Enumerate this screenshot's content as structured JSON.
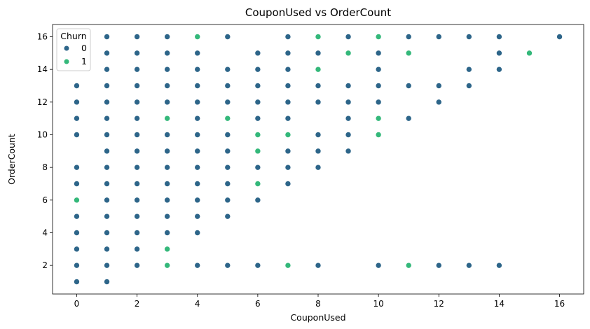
{
  "chart_data": {
    "type": "scatter",
    "title": "CouponUsed vs OrderCount",
    "xlabel": "CouponUsed",
    "ylabel": "OrderCount",
    "xlim": [
      -0.8,
      16.8
    ],
    "ylim": [
      0.25,
      16.75
    ],
    "xticks": [
      0,
      2,
      4,
      6,
      8,
      10,
      12,
      14,
      16
    ],
    "yticks": [
      2,
      4,
      6,
      8,
      10,
      12,
      14,
      16
    ],
    "grid": false,
    "legend": {
      "title": "Churn",
      "placement": "top-left",
      "entries": [
        "0",
        "1"
      ]
    },
    "colors": {
      "0": "#2d6589",
      "1": "#34b87a"
    },
    "series": [
      {
        "name": "0",
        "points": [
          [
            0,
            1
          ],
          [
            0,
            2
          ],
          [
            0,
            3
          ],
          [
            0,
            4
          ],
          [
            0,
            5
          ],
          [
            0,
            7
          ],
          [
            0,
            8
          ],
          [
            0,
            10
          ],
          [
            0,
            11
          ],
          [
            0,
            12
          ],
          [
            0,
            13
          ],
          [
            1,
            1
          ],
          [
            1,
            2
          ],
          [
            1,
            3
          ],
          [
            1,
            4
          ],
          [
            1,
            5
          ],
          [
            1,
            6
          ],
          [
            1,
            7
          ],
          [
            1,
            8
          ],
          [
            1,
            9
          ],
          [
            1,
            10
          ],
          [
            1,
            11
          ],
          [
            1,
            12
          ],
          [
            1,
            13
          ],
          [
            1,
            14
          ],
          [
            1,
            15
          ],
          [
            1,
            16
          ],
          [
            2,
            2
          ],
          [
            2,
            3
          ],
          [
            2,
            4
          ],
          [
            2,
            5
          ],
          [
            2,
            6
          ],
          [
            2,
            7
          ],
          [
            2,
            8
          ],
          [
            2,
            9
          ],
          [
            2,
            10
          ],
          [
            2,
            11
          ],
          [
            2,
            12
          ],
          [
            2,
            13
          ],
          [
            2,
            14
          ],
          [
            2,
            15
          ],
          [
            2,
            16
          ],
          [
            3,
            4
          ],
          [
            3,
            5
          ],
          [
            3,
            6
          ],
          [
            3,
            7
          ],
          [
            3,
            8
          ],
          [
            3,
            9
          ],
          [
            3,
            10
          ],
          [
            3,
            12
          ],
          [
            3,
            13
          ],
          [
            3,
            14
          ],
          [
            3,
            15
          ],
          [
            3,
            16
          ],
          [
            4,
            2
          ],
          [
            4,
            4
          ],
          [
            4,
            5
          ],
          [
            4,
            6
          ],
          [
            4,
            7
          ],
          [
            4,
            8
          ],
          [
            4,
            9
          ],
          [
            4,
            10
          ],
          [
            4,
            11
          ],
          [
            4,
            12
          ],
          [
            4,
            13
          ],
          [
            4,
            14
          ],
          [
            4,
            15
          ],
          [
            5,
            2
          ],
          [
            5,
            5
          ],
          [
            5,
            6
          ],
          [
            5,
            7
          ],
          [
            5,
            8
          ],
          [
            5,
            9
          ],
          [
            5,
            10
          ],
          [
            5,
            12
          ],
          [
            5,
            13
          ],
          [
            5,
            14
          ],
          [
            5,
            16
          ],
          [
            6,
            2
          ],
          [
            6,
            6
          ],
          [
            6,
            8
          ],
          [
            6,
            11
          ],
          [
            6,
            12
          ],
          [
            6,
            13
          ],
          [
            6,
            14
          ],
          [
            6,
            15
          ],
          [
            7,
            7
          ],
          [
            7,
            8
          ],
          [
            7,
            9
          ],
          [
            7,
            11
          ],
          [
            7,
            12
          ],
          [
            7,
            13
          ],
          [
            7,
            14
          ],
          [
            7,
            15
          ],
          [
            7,
            16
          ],
          [
            8,
            2
          ],
          [
            8,
            8
          ],
          [
            8,
            9
          ],
          [
            8,
            10
          ],
          [
            8,
            12
          ],
          [
            8,
            13
          ],
          [
            8,
            15
          ],
          [
            9,
            9
          ],
          [
            9,
            10
          ],
          [
            9,
            11
          ],
          [
            9,
            12
          ],
          [
            9,
            13
          ],
          [
            9,
            16
          ],
          [
            10,
            2
          ],
          [
            10,
            12
          ],
          [
            10,
            13
          ],
          [
            10,
            14
          ],
          [
            10,
            15
          ],
          [
            11,
            11
          ],
          [
            11,
            13
          ],
          [
            11,
            16
          ],
          [
            12,
            2
          ],
          [
            12,
            12
          ],
          [
            12,
            13
          ],
          [
            12,
            16
          ],
          [
            13,
            2
          ],
          [
            13,
            13
          ],
          [
            13,
            14
          ],
          [
            13,
            16
          ],
          [
            14,
            2
          ],
          [
            14,
            14
          ],
          [
            14,
            15
          ],
          [
            14,
            16
          ],
          [
            16,
            16
          ]
        ]
      },
      {
        "name": "1",
        "points": [
          [
            0,
            6
          ],
          [
            3,
            2
          ],
          [
            3,
            3
          ],
          [
            3,
            11
          ],
          [
            4,
            16
          ],
          [
            5,
            11
          ],
          [
            6,
            7
          ],
          [
            6,
            9
          ],
          [
            6,
            10
          ],
          [
            7,
            2
          ],
          [
            7,
            10
          ],
          [
            8,
            14
          ],
          [
            8,
            16
          ],
          [
            9,
            15
          ],
          [
            10,
            10
          ],
          [
            10,
            11
          ],
          [
            10,
            16
          ],
          [
            11,
            2
          ],
          [
            11,
            15
          ],
          [
            15,
            15
          ]
        ]
      }
    ]
  }
}
